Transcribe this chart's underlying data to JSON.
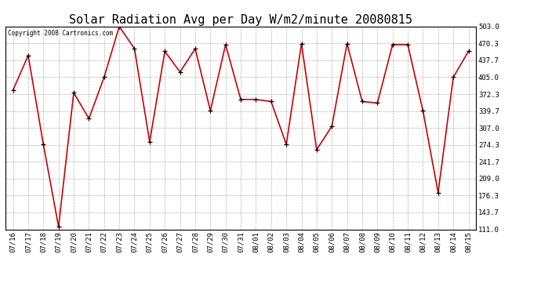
{
  "title": "Solar Radiation Avg per Day W/m2/minute 20080815",
  "copyright": "Copyright 2008 Cartronics.com",
  "dates": [
    "07/16",
    "07/17",
    "07/18",
    "07/19",
    "07/20",
    "07/21",
    "07/22",
    "07/23",
    "07/24",
    "07/25",
    "07/26",
    "07/27",
    "07/28",
    "07/29",
    "07/30",
    "07/31",
    "08/01",
    "08/02",
    "08/03",
    "08/04",
    "08/05",
    "08/06",
    "08/07",
    "08/08",
    "08/09",
    "08/10",
    "08/11",
    "08/12",
    "08/13",
    "08/14",
    "08/15"
  ],
  "values": [
    380,
    447,
    275,
    116,
    375,
    325,
    405,
    503,
    460,
    280,
    455,
    415,
    460,
    340,
    468,
    362,
    362,
    358,
    275,
    470,
    265,
    310,
    470,
    358,
    355,
    468,
    468,
    340,
    182,
    405,
    455
  ],
  "line_color": "#cc0000",
  "bg_color": "#ffffff",
  "grid_color": "#aaaaaa",
  "title_fontsize": 11,
  "copyright_fontsize": 5.5,
  "tick_fontsize": 6.5,
  "yticks": [
    111.0,
    143.7,
    176.3,
    209.0,
    241.7,
    274.3,
    307.0,
    339.7,
    372.3,
    405.0,
    437.7,
    470.3,
    503.0
  ],
  "ylim": [
    111.0,
    503.0
  ]
}
